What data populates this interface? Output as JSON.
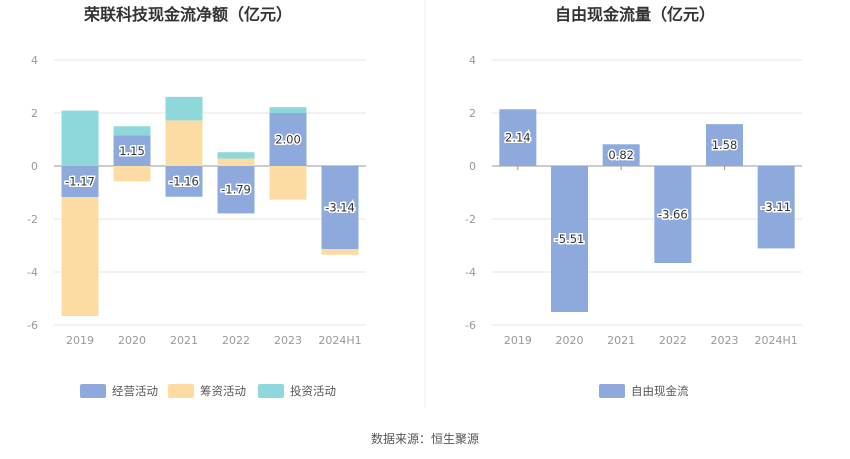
{
  "chart_data": [
    {
      "type": "bar",
      "stacked": true,
      "title": "荣联科技现金流净额（亿元）",
      "categories": [
        "2019",
        "2020",
        "2021",
        "2022",
        "2023",
        "2024H1"
      ],
      "ylim": [
        -6,
        4
      ],
      "yticks": [
        4,
        2,
        0,
        -2,
        -4,
        -6
      ],
      "grid": true,
      "legend_position": "bottom",
      "series": [
        {
          "name": "经营活动",
          "color": "#8eaadc",
          "values": [
            -1.17,
            1.15,
            -1.16,
            -1.79,
            2.0,
            -3.14
          ],
          "labels": [
            "-1.17",
            "1.15",
            "-1.16",
            "-1.79",
            "2.00",
            "-3.14"
          ]
        },
        {
          "name": "筹资活动",
          "color": "#fddca4",
          "values": [
            -4.49,
            -0.58,
            1.72,
            0.28,
            -1.27,
            -0.21
          ]
        },
        {
          "name": "投资活动",
          "color": "#8ed8dc",
          "values": [
            2.09,
            0.35,
            0.89,
            0.24,
            0.22,
            0
          ]
        }
      ]
    },
    {
      "type": "bar",
      "title": "自由现金流量（亿元）",
      "categories": [
        "2019",
        "2020",
        "2021",
        "2022",
        "2023",
        "2024H1"
      ],
      "ylim": [
        -6,
        4
      ],
      "yticks": [
        4,
        2,
        0,
        -2,
        -4,
        -6
      ],
      "grid": true,
      "legend_position": "bottom",
      "series": [
        {
          "name": "自由现金流",
          "color": "#8eaadc",
          "values": [
            2.14,
            -5.51,
            0.82,
            -3.66,
            1.58,
            -3.11
          ],
          "labels": [
            "2.14",
            "-5.51",
            "0.82",
            "-3.66",
            "1.58",
            "-3.11"
          ]
        }
      ]
    }
  ],
  "footer": {
    "source": "数据来源：恒生聚源"
  }
}
